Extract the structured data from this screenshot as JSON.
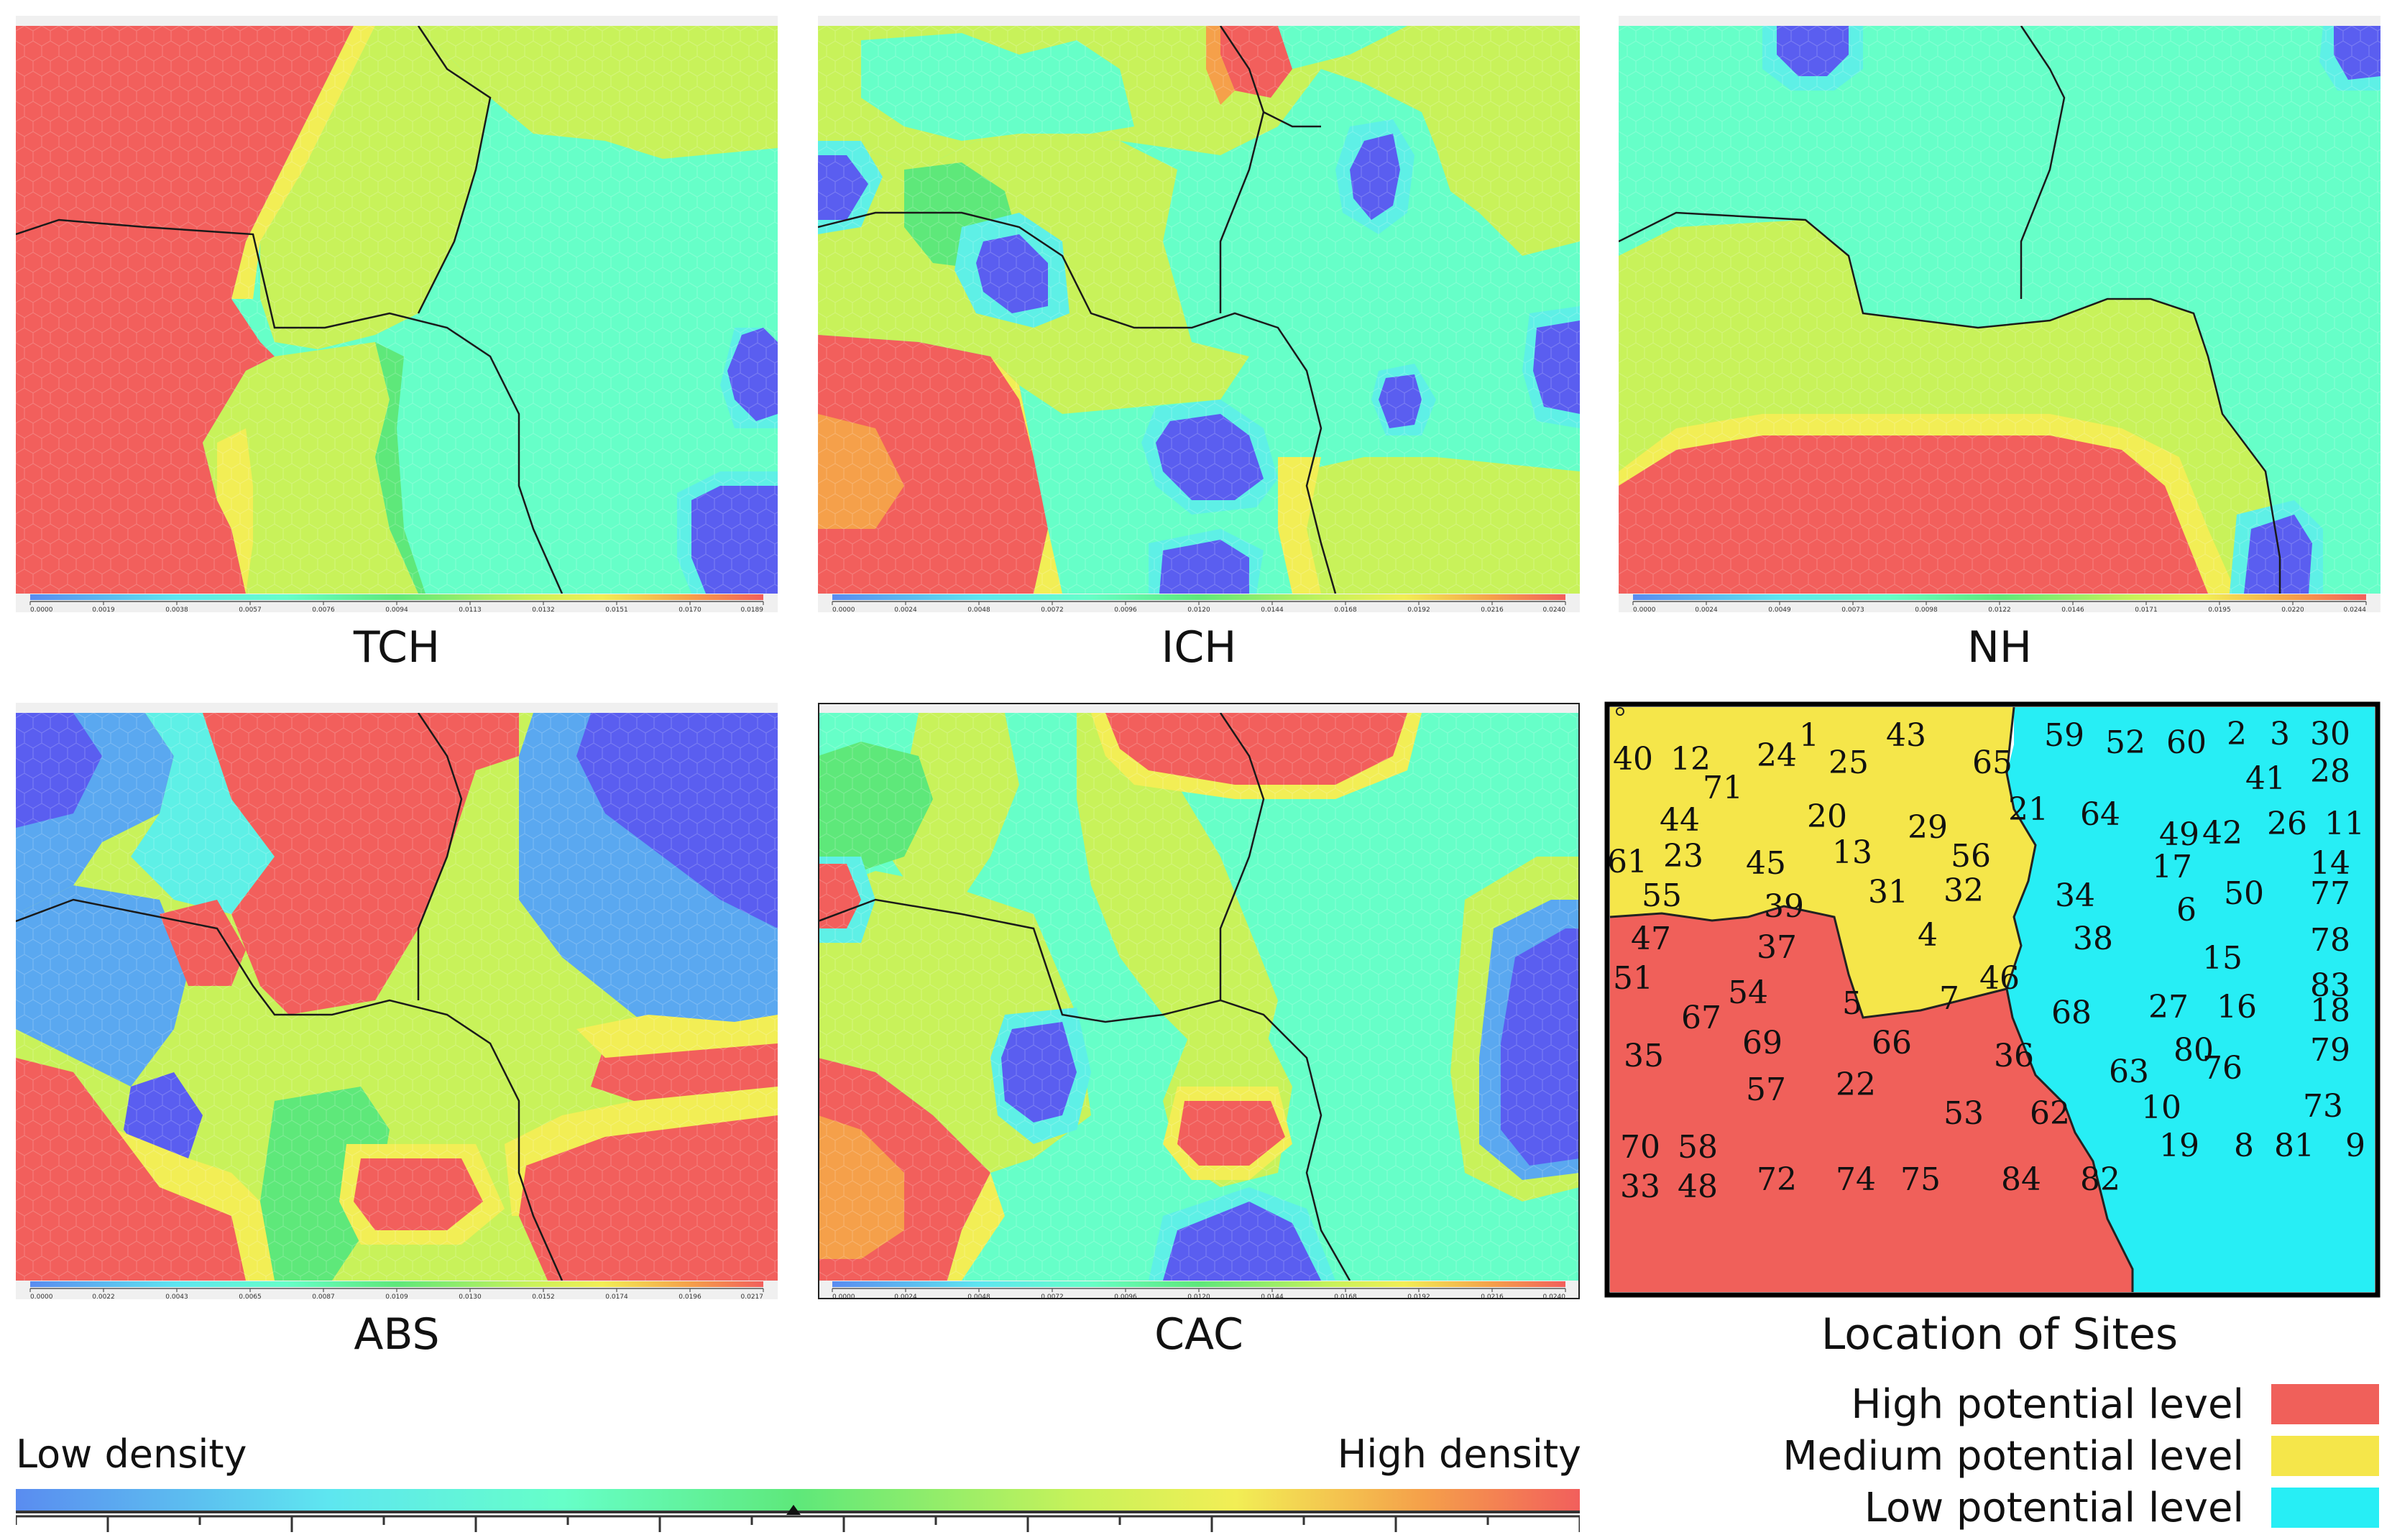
{
  "panels": [
    {
      "id": "tch",
      "label": "TCH",
      "ticks": [
        "0.0000",
        "0.0019",
        "0.0038",
        "0.0057",
        "0.0076",
        "0.0094",
        "0.0113",
        "0.0132",
        "0.0151",
        "0.0170",
        "0.0189"
      ]
    },
    {
      "id": "ich",
      "label": "ICH",
      "ticks": [
        "0.0000",
        "0.0024",
        "0.0048",
        "0.0072",
        "0.0096",
        "0.0120",
        "0.0144",
        "0.0168",
        "0.0192",
        "0.0216",
        "0.0240"
      ]
    },
    {
      "id": "nh",
      "label": "NH",
      "ticks": [
        "0.0000",
        "0.0024",
        "0.0049",
        "0.0073",
        "0.0098",
        "0.0122",
        "0.0146",
        "0.0171",
        "0.0195",
        "0.0220",
        "0.0244"
      ]
    },
    {
      "id": "abs",
      "label": "ABS",
      "ticks": [
        "0.0000",
        "0.0022",
        "0.0043",
        "0.0065",
        "0.0087",
        "0.0109",
        "0.0130",
        "0.0152",
        "0.0174",
        "0.0196",
        "0.0217"
      ]
    },
    {
      "id": "cac",
      "label": "CAC",
      "ticks": [
        "0.0000",
        "0.0024",
        "0.0048",
        "0.0072",
        "0.0096",
        "0.0120",
        "0.0144",
        "0.0168",
        "0.0192",
        "0.0216",
        "0.0240"
      ]
    }
  ],
  "sites_map": {
    "title": "Location of Sites",
    "sites": [
      "40",
      "12",
      "24",
      "1",
      "43",
      "25",
      "65",
      "71",
      "44",
      "20",
      "29",
      "21",
      "61",
      "23",
      "45",
      "13",
      "56",
      "31",
      "32",
      "4",
      "59",
      "52",
      "60",
      "2",
      "3",
      "30",
      "41",
      "28",
      "64",
      "49",
      "42",
      "26",
      "11",
      "17",
      "14",
      "34",
      "6",
      "50",
      "77",
      "38",
      "78",
      "15",
      "83",
      "27",
      "16",
      "18",
      "80",
      "79",
      "63",
      "76",
      "10",
      "73",
      "19",
      "8",
      "81",
      "9",
      "55",
      "39",
      "47",
      "37",
      "51",
      "54",
      "5",
      "7",
      "46",
      "67",
      "68",
      "35",
      "69",
      "66",
      "36",
      "57",
      "22",
      "53",
      "62",
      "70",
      "58",
      "33",
      "48",
      "72",
      "74",
      "75",
      "84",
      "82"
    ]
  },
  "legend": [
    {
      "label": "High potential level",
      "color": "#f0605a"
    },
    {
      "label": "Medium potential level",
      "color": "#f5e64a"
    },
    {
      "label": "Low potential level",
      "color": "#27eef5"
    }
  ],
  "colorbar": {
    "low": "Low density",
    "high": "High density"
  },
  "colors": {
    "red": "#f25f5c",
    "orange": "#f5a04a",
    "yellow": "#f2ee55",
    "lime": "#c8f25a",
    "green": "#5ee87a",
    "teal": "#66ffc8",
    "cyan": "#5ef0e6",
    "lightblue": "#5aa8f0",
    "blue": "#5a5ef0"
  }
}
